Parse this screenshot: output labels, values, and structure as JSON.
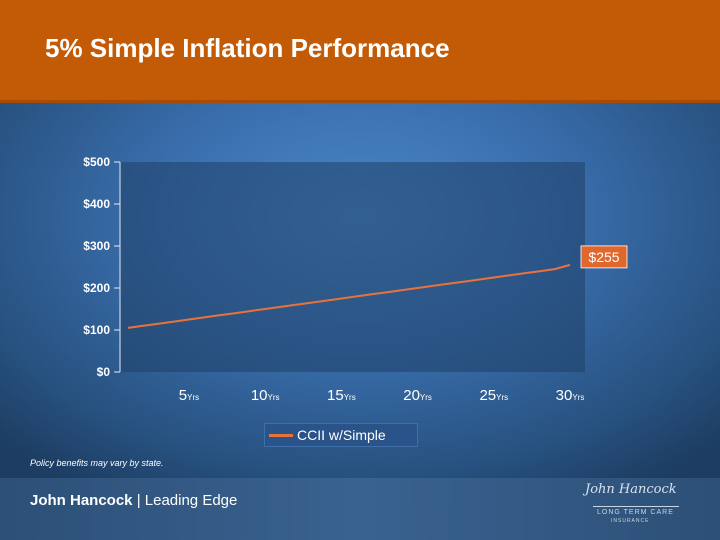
{
  "title": "5% Simple Inflation Performance",
  "chart_data": {
    "type": "line",
    "title": "",
    "xlabel": "",
    "ylabel": "",
    "x": [
      1,
      2,
      3,
      4,
      5,
      6,
      7,
      8,
      9,
      10,
      11,
      12,
      13,
      14,
      15,
      16,
      17,
      18,
      19,
      20,
      21,
      22,
      23,
      24,
      25,
      26,
      27,
      28,
      29,
      30
    ],
    "series": [
      {
        "name": "CCII w/Simple",
        "color": "#e8733a",
        "values": [
          105,
          110,
          115,
          120,
          125,
          130,
          135,
          140,
          145,
          150,
          155,
          160,
          165,
          170,
          175,
          180,
          185,
          190,
          195,
          200,
          205,
          210,
          215,
          220,
          225,
          230,
          235,
          240,
          245,
          255
        ]
      }
    ],
    "ylim": [
      0,
      500
    ],
    "yticks": [
      "$0",
      "$100",
      "$200",
      "$300",
      "$400",
      "$500"
    ],
    "yticks_values": [
      0,
      100,
      200,
      300,
      400,
      500
    ],
    "xticks": [
      {
        "x": 5,
        "num": "5",
        "unit": "Yrs"
      },
      {
        "x": 10,
        "num": "10",
        "unit": "Yrs"
      },
      {
        "x": 15,
        "num": "15",
        "unit": "Yrs"
      },
      {
        "x": 20,
        "num": "20",
        "unit": "Yrs"
      },
      {
        "x": 25,
        "num": "25",
        "unit": "Yrs"
      },
      {
        "x": 30,
        "num": "30",
        "unit": "Yrs"
      }
    ],
    "annotations": [
      {
        "x": 30,
        "y": 255,
        "text": "$255"
      }
    ],
    "grid": false,
    "legend_position": "bottom"
  },
  "legend_label": "CCII w/Simple",
  "footnote": "Policy benefits may vary by state.",
  "footer": {
    "brand_bold": "John Hancock",
    "brand_sep": " | ",
    "brand_rest": "Leading Edge",
    "logo_signature": "John Hancock",
    "logo_line1": "LONG TERM CARE",
    "logo_line2": "INSURANCE"
  }
}
